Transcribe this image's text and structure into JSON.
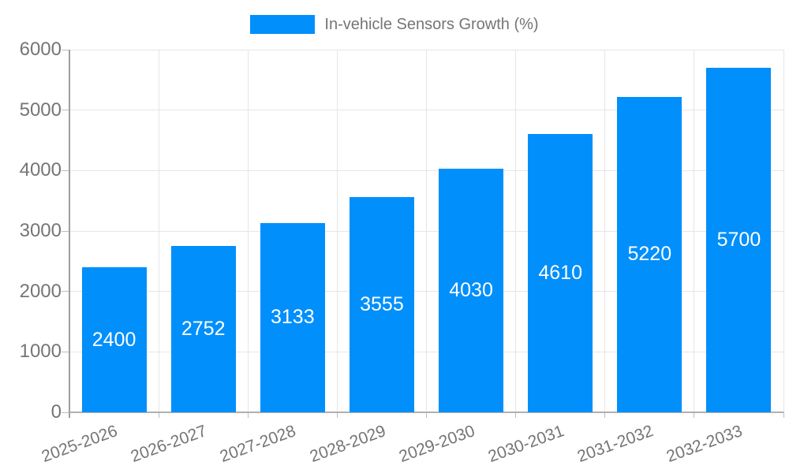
{
  "legend": {
    "label": "In-vehicle Sensors Growth (%)"
  },
  "chart_data": {
    "type": "bar",
    "title": "In-vehicle Sensors Growth (%)",
    "categories": [
      "2025-2026",
      "2026-2027",
      "2027-2028",
      "2028-2029",
      "2029-2030",
      "2030-2031",
      "2031-2032",
      "2032-2033"
    ],
    "values": [
      2400,
      2752,
      3133,
      3555,
      4030,
      4610,
      5220,
      5700
    ],
    "xlabel": "",
    "ylabel": "",
    "ylim": [
      0,
      6000
    ],
    "y_ticks": [
      0,
      1000,
      2000,
      3000,
      4000,
      5000,
      6000
    ],
    "grid": true,
    "legend_position": "top",
    "bar_color": "#008ffb",
    "value_label_color": "#ffffff",
    "axis_text_color": "#757575"
  }
}
